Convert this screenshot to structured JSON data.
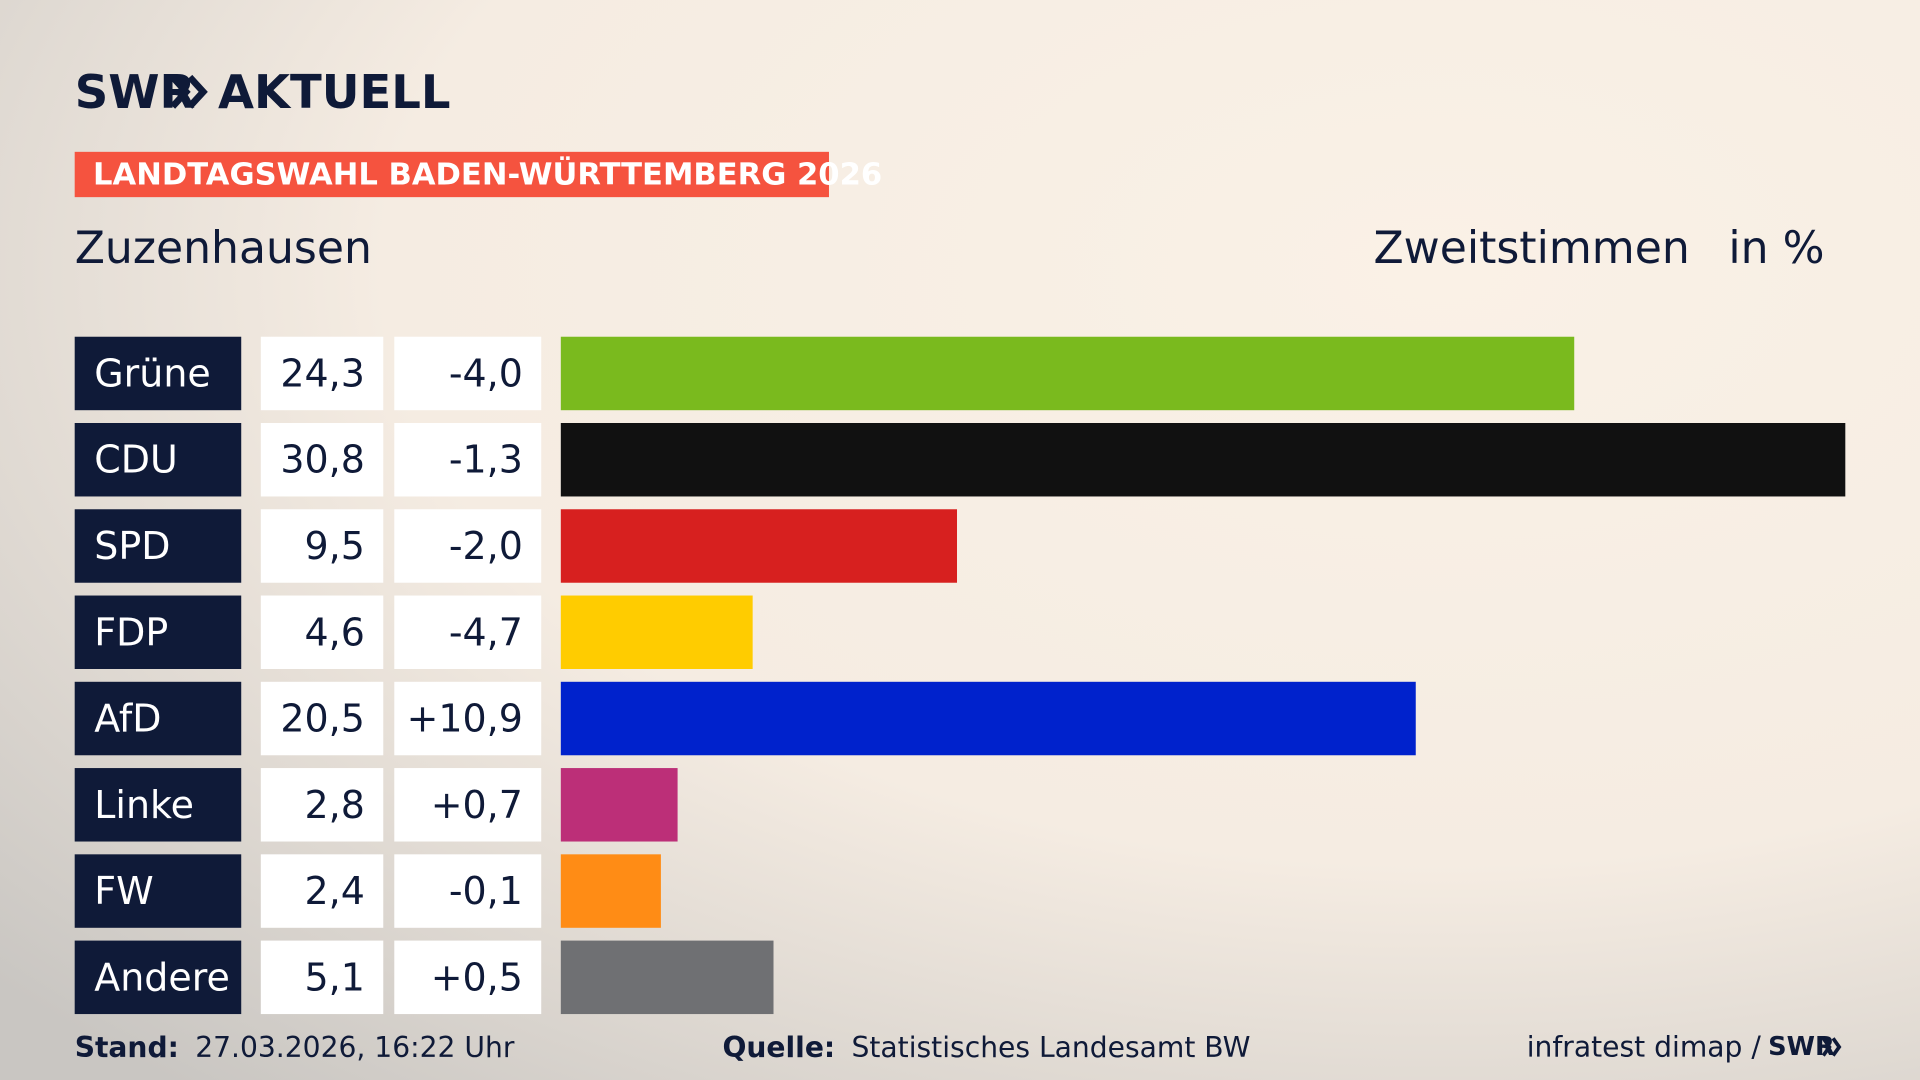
{
  "logo": {
    "brand": "SWR",
    "name": "AKTUELL"
  },
  "banner": "LANDTAGSWAHL BADEN-WÜRTTEMBERG 2026",
  "chart_data": {
    "type": "bar",
    "title": "Zuzenhausen",
    "subtitle": "Zweitstimmen",
    "unit": "in %",
    "categories": [
      "Grüne",
      "CDU",
      "SPD",
      "FDP",
      "AfD",
      "Linke",
      "FW",
      "Andere"
    ],
    "values": [
      24.3,
      30.8,
      9.5,
      4.6,
      20.5,
      2.8,
      2.4,
      5.1
    ],
    "value_labels": [
      "24,3",
      "30,8",
      "9,5",
      "4,6",
      "20,5",
      "2,8",
      "2,4",
      "5,1"
    ],
    "change_labels": [
      "-4,0",
      "-1,3",
      "-2,0",
      "-4,7",
      "+10,9",
      "+0,7",
      "-0,1",
      "+0,5"
    ],
    "colors": [
      "#7aba1e",
      "#111111",
      "#d7201f",
      "#ffcc00",
      "#0022cc",
      "#bc2f78",
      "#ff8c15",
      "#6f7073"
    ]
  },
  "footer": {
    "stand_label": "Stand:",
    "stand": "27.03.2026, 16:22 Uhr",
    "source_label": "Quelle:",
    "source": "Statistisches Landesamt BW",
    "institute": "infratest dimap /",
    "brand": "SWR"
  }
}
